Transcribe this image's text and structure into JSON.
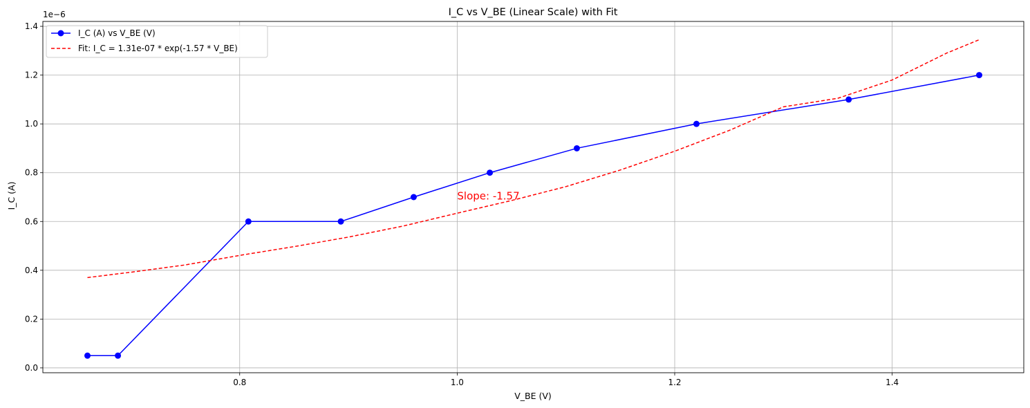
{
  "chart_data": {
    "type": "line",
    "title": "I_C vs V_BE (Linear Scale) with Fit",
    "xlabel": "V_BE (V)",
    "ylabel": "I_C (A)",
    "y_offset_label": "1e−6",
    "xlim": [
      0.619,
      1.521
    ],
    "ylim": [
      -0.02,
      1.42
    ],
    "y_scale_factor": 1e-06,
    "x_ticks": [
      0.8,
      1.0,
      1.2,
      1.4
    ],
    "x_tick_labels": [
      "0.8",
      "1.0",
      "1.2",
      "1.4"
    ],
    "y_ticks": [
      0.0,
      0.2,
      0.4,
      0.6,
      0.8,
      1.0,
      1.2,
      1.4
    ],
    "y_tick_labels": [
      "0.0",
      "0.2",
      "0.4",
      "0.6",
      "0.8",
      "1.0",
      "1.2",
      "1.4"
    ],
    "grid": true,
    "legend_position": "top-left",
    "series": [
      {
        "name": "I_C (A) vs V_BE (V)",
        "style": "line-marker",
        "color": "#0000ff",
        "x": [
          0.66,
          0.688,
          0.808,
          0.893,
          0.96,
          1.03,
          1.11,
          1.22,
          1.36,
          1.48
        ],
        "y": [
          0.05,
          0.05,
          0.6,
          0.6,
          0.7,
          0.8,
          0.9,
          1.0,
          1.1,
          1.2
        ]
      },
      {
        "name": "Fit: I_C = 1.31e-07 * exp(-1.57 * V_BE)",
        "style": "dashed",
        "color": "#ff0000",
        "x": [
          0.66,
          0.7,
          0.75,
          0.8,
          0.85,
          0.9,
          0.95,
          1.0,
          1.05,
          1.1,
          1.15,
          1.2,
          1.25,
          1.3,
          1.35,
          1.4,
          1.45,
          1.48
        ],
        "y": [
          0.37,
          0.392,
          0.422,
          0.461,
          0.497,
          0.536,
          0.581,
          0.634,
          0.686,
          0.743,
          0.811,
          0.888,
          0.973,
          1.07,
          1.105,
          1.18,
          1.29,
          1.345
        ]
      }
    ],
    "annotations": [
      {
        "text": "Slope: -1.57",
        "x": 1.0,
        "y": 0.69,
        "color": "#ff0000"
      }
    ]
  }
}
